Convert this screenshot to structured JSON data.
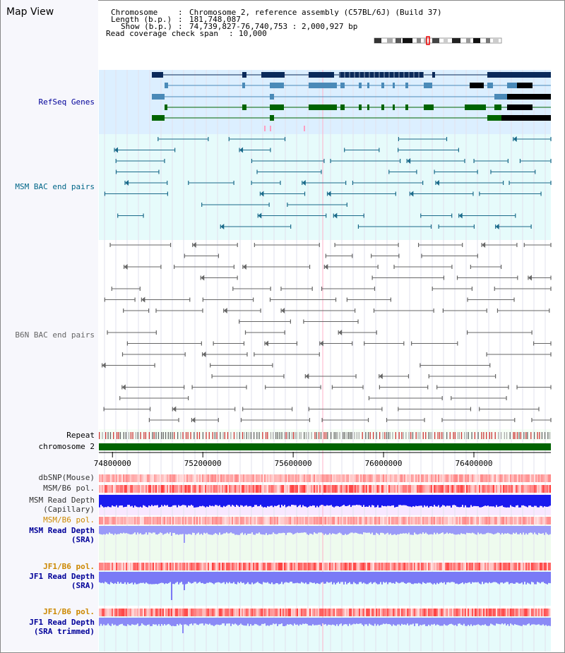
{
  "title": "Map View",
  "info": {
    "chromosome_key": "Chromosome",
    "chromosome_val": "Chromosome 2, reference assembly (C57BL/6J) (Build 37)",
    "length_key": "Length (b.p.)",
    "length_val": "181,748,087",
    "show_key": "Show (b.p.)",
    "show_val": "74,739,827-76,740,753 : 2,000,927 bp",
    "span_key": "Read coverage check span",
    "span_val": "10,000"
  },
  "tracks": {
    "refseq": "RefSeq Genes",
    "msm_bac": "MSM BAC end pairs",
    "b6n_bac": "B6N BAC end pairs",
    "repeat": "Repeat",
    "chromosome": "chromosome 2",
    "dbsnp": "dbSNP(Mouse)",
    "msm_b6_pol": "MSM/B6 pol.",
    "msm_depth_cap_1": "MSM Read Depth",
    "msm_depth_cap_2": "(Capillary)",
    "msm_b6_pol_2": "MSM/B6 pol.",
    "msm_depth_sra_1": "MSM Read Depth",
    "msm_depth_sra_2": "(SRA)",
    "jf1_b6_pol": "JF1/B6 pol.",
    "jf1_depth_sra_1": "JF1 Read Depth",
    "jf1_depth_sra_2": "(SRA)",
    "jf1_b6_pol_2": "JF1/B6 pol.",
    "jf1_depth_trim_1": "JF1 Read Depth",
    "jf1_depth_trim_2": "(SRA trimmed)"
  },
  "ruler": {
    "ticks": [
      "74800000",
      "75200000",
      "75600000",
      "76000000",
      "76400000"
    ],
    "range": [
      74739827,
      76740753
    ]
  },
  "colors": {
    "gene_dark": "#0a2a5a",
    "gene_mid": "#4a8ab8",
    "gene_green": "#006400",
    "gene_black": "#000000",
    "msm_bac": "#1a6a8a",
    "b6n_bac": "#666666",
    "chromosome": "#006400",
    "refseq_label": "#000099",
    "msm_label": "#006688",
    "b6n_label": "#666666",
    "pol_label": "#cc8800",
    "depth_label": "#000099"
  }
}
